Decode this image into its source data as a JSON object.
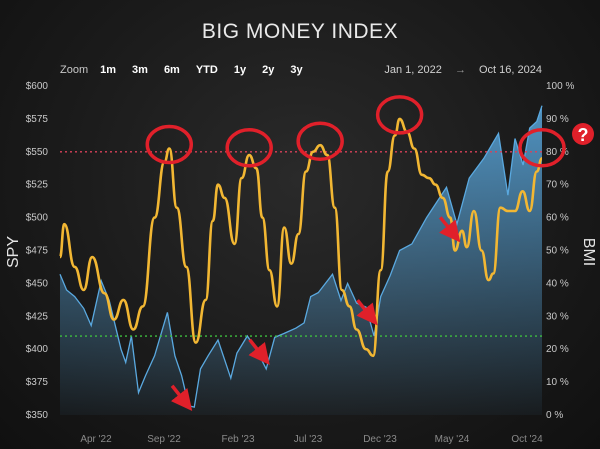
{
  "chart_data": {
    "type": "line",
    "title": "BIG MONEY INDEX",
    "ylabel_left": "SPY",
    "ylabel_right": "BMI",
    "y_left_ticks": [
      "$600",
      "$575",
      "$550",
      "$525",
      "$500",
      "$475",
      "$450",
      "$425",
      "$400",
      "$375",
      "$350"
    ],
    "y_left_range": [
      350,
      600
    ],
    "y_right_ticks": [
      "100 %",
      "90 %",
      "80 %",
      "70 %",
      "60 %",
      "50 %",
      "40 %",
      "30 %",
      "20 %",
      "10 %",
      "0 %"
    ],
    "y_right_range": [
      0,
      100
    ],
    "x_tick_labels": [
      "Apr '22",
      "Sep '22",
      "Feb '23",
      "Jul '23",
      "Dec '23",
      "May '24",
      "Oct '24"
    ],
    "x_range": [
      "2022-01-01",
      "2024-10-16"
    ],
    "zoom": {
      "label": "Zoom",
      "options": [
        "1m",
        "3m",
        "6m",
        "YTD",
        "1y",
        "2y",
        "3y"
      ]
    },
    "date_range": {
      "start": "Jan 1, 2022",
      "arrow": "→",
      "end": "Oct 16, 2024"
    },
    "reference_lines": [
      {
        "axis": "right",
        "value": 80,
        "color": "#d9415a",
        "style": "dotted"
      },
      {
        "axis": "right",
        "value": 24,
        "color": "#3fbf3f",
        "style": "dotted"
      }
    ],
    "series": [
      {
        "axis": "left",
        "color": "#5aa9e0",
        "fill": "area",
        "points": [
          [
            "2022-01-01",
            457
          ],
          [
            "2022-01-15",
            445
          ],
          [
            "2022-02-01",
            440
          ],
          [
            "2022-02-20",
            431
          ],
          [
            "2022-03-08",
            418
          ],
          [
            "2022-03-29",
            452
          ],
          [
            "2022-04-15",
            437
          ],
          [
            "2022-05-10",
            400
          ],
          [
            "2022-05-20",
            390
          ],
          [
            "2022-06-01",
            410
          ],
          [
            "2022-06-16",
            367
          ],
          [
            "2022-07-01",
            380
          ],
          [
            "2022-07-20",
            395
          ],
          [
            "2022-08-16",
            428
          ],
          [
            "2022-09-01",
            395
          ],
          [
            "2022-09-15",
            380
          ],
          [
            "2022-09-30",
            357
          ],
          [
            "2022-10-12",
            356
          ],
          [
            "2022-10-25",
            385
          ],
          [
            "2022-11-10",
            395
          ],
          [
            "2022-12-01",
            407
          ],
          [
            "2022-12-15",
            392
          ],
          [
            "2022-12-28",
            378
          ],
          [
            "2023-01-10",
            397
          ],
          [
            "2023-02-01",
            410
          ],
          [
            "2023-02-20",
            400
          ],
          [
            "2023-03-13",
            385
          ],
          [
            "2023-03-31",
            409
          ],
          [
            "2023-04-20",
            412
          ],
          [
            "2023-05-15",
            416
          ],
          [
            "2023-06-01",
            420
          ],
          [
            "2023-06-15",
            440
          ],
          [
            "2023-07-01",
            443
          ],
          [
            "2023-07-31",
            457
          ],
          [
            "2023-08-18",
            437
          ],
          [
            "2023-09-01",
            450
          ],
          [
            "2023-09-20",
            435
          ],
          [
            "2023-10-10",
            432
          ],
          [
            "2023-10-27",
            410
          ],
          [
            "2023-11-10",
            440
          ],
          [
            "2023-11-30",
            456
          ],
          [
            "2023-12-20",
            475
          ],
          [
            "2024-01-15",
            480
          ],
          [
            "2024-02-15",
            500
          ],
          [
            "2024-03-28",
            523
          ],
          [
            "2024-04-19",
            495
          ],
          [
            "2024-05-15",
            530
          ],
          [
            "2024-06-15",
            545
          ],
          [
            "2024-07-16",
            564
          ],
          [
            "2024-08-05",
            517
          ],
          [
            "2024-08-20",
            560
          ],
          [
            "2024-09-06",
            540
          ],
          [
            "2024-09-20",
            568
          ],
          [
            "2024-10-05",
            573
          ],
          [
            "2024-10-16",
            585
          ]
        ]
      },
      {
        "axis": "right",
        "color": "#f2b733",
        "points": [
          [
            "2022-01-01",
            48
          ],
          [
            "2022-01-10",
            58
          ],
          [
            "2022-02-01",
            45
          ],
          [
            "2022-02-20",
            38
          ],
          [
            "2022-03-10",
            48
          ],
          [
            "2022-04-05",
            37
          ],
          [
            "2022-04-25",
            29
          ],
          [
            "2022-05-15",
            35
          ],
          [
            "2022-06-05",
            26
          ],
          [
            "2022-06-25",
            33
          ],
          [
            "2022-07-20",
            60
          ],
          [
            "2022-08-10",
            77
          ],
          [
            "2022-08-20",
            81
          ],
          [
            "2022-09-05",
            63
          ],
          [
            "2022-09-25",
            45
          ],
          [
            "2022-10-15",
            22
          ],
          [
            "2022-11-05",
            35
          ],
          [
            "2022-11-20",
            59
          ],
          [
            "2022-12-01",
            70
          ],
          [
            "2022-12-15",
            66
          ],
          [
            "2023-01-05",
            52
          ],
          [
            "2023-01-20",
            72
          ],
          [
            "2023-02-05",
            79
          ],
          [
            "2023-02-20",
            75
          ],
          [
            "2023-03-05",
            60
          ],
          [
            "2023-03-20",
            44
          ],
          [
            "2023-04-05",
            33
          ],
          [
            "2023-04-20",
            57
          ],
          [
            "2023-05-05",
            46
          ],
          [
            "2023-05-20",
            55
          ],
          [
            "2023-06-05",
            74
          ],
          [
            "2023-06-20",
            80
          ],
          [
            "2023-07-05",
            82
          ],
          [
            "2023-07-20",
            79
          ],
          [
            "2023-08-05",
            63
          ],
          [
            "2023-08-20",
            38
          ],
          [
            "2023-09-05",
            33
          ],
          [
            "2023-09-20",
            26
          ],
          [
            "2023-10-10",
            20
          ],
          [
            "2023-10-25",
            18
          ],
          [
            "2023-11-10",
            44
          ],
          [
            "2023-11-25",
            74
          ],
          [
            "2023-12-10",
            85
          ],
          [
            "2023-12-20",
            90
          ],
          [
            "2024-01-05",
            86
          ],
          [
            "2024-01-20",
            81
          ],
          [
            "2024-02-05",
            73
          ],
          [
            "2024-02-20",
            72
          ],
          [
            "2024-03-05",
            70
          ],
          [
            "2024-03-20",
            66
          ],
          [
            "2024-04-05",
            60
          ],
          [
            "2024-04-15",
            50
          ],
          [
            "2024-04-30",
            56
          ],
          [
            "2024-05-10",
            51
          ],
          [
            "2024-05-25",
            62
          ],
          [
            "2024-06-10",
            50
          ],
          [
            "2024-06-25",
            41
          ],
          [
            "2024-07-05",
            43
          ],
          [
            "2024-07-20",
            63
          ],
          [
            "2024-08-05",
            62
          ],
          [
            "2024-08-20",
            62
          ],
          [
            "2024-09-05",
            68
          ],
          [
            "2024-09-20",
            62
          ],
          [
            "2024-10-05",
            74
          ],
          [
            "2024-10-16",
            78
          ]
        ]
      }
    ],
    "annotations": {
      "circles": [
        {
          "date": "2022-08-20",
          "value": 81,
          "axis": "right",
          "color": "#e0202a"
        },
        {
          "date": "2023-02-05",
          "value": 80,
          "axis": "right",
          "color": "#e0202a"
        },
        {
          "date": "2023-07-05",
          "value": 82,
          "axis": "right",
          "color": "#e0202a"
        },
        {
          "date": "2023-12-20",
          "value": 90,
          "axis": "right",
          "color": "#e0202a"
        },
        {
          "date": "2024-10-16",
          "value": 80,
          "axis": "right",
          "color": "#e0202a"
        }
      ],
      "arrows_to": [
        {
          "date": "2022-09-30",
          "value": 357,
          "axis": "left",
          "color": "#e0202a"
        },
        {
          "date": "2023-03-13",
          "value": 392,
          "axis": "left",
          "color": "#e0202a"
        },
        {
          "date": "2023-10-27",
          "value": 422,
          "axis": "left",
          "color": "#e0202a"
        },
        {
          "date": "2024-04-19",
          "value": 485,
          "axis": "left",
          "color": "#e0202a"
        }
      ],
      "question_mark": {
        "text": "?",
        "color": "#e0202a"
      }
    }
  }
}
